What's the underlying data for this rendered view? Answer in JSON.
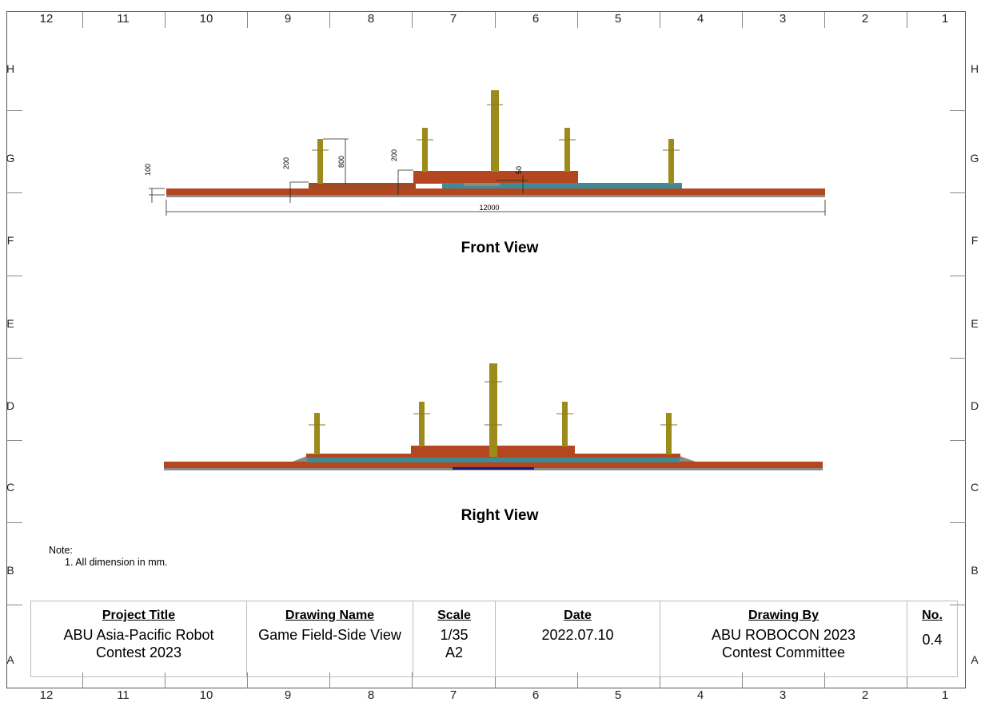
{
  "columns": [
    "12",
    "11",
    "10",
    "9",
    "8",
    "7",
    "6",
    "5",
    "4",
    "3",
    "2",
    "1"
  ],
  "rows": [
    "H",
    "G",
    "F",
    "E",
    "D",
    "C",
    "B",
    "A"
  ],
  "views": {
    "front_title": "Front View",
    "right_title": "Right View"
  },
  "dimensions": {
    "d100": "100",
    "d200a": "200",
    "d800": "800",
    "d200b": "200",
    "d50": "50",
    "d12000": "12000"
  },
  "note": {
    "label": "Note:",
    "line1": "1. All dimension in mm."
  },
  "title_block": {
    "project_title_label": "Project Title",
    "project_title_line1": "ABU Asia-Pacific Robot",
    "project_title_line2": "Contest 2023",
    "drawing_name_label": "Drawing Name",
    "drawing_name_value": "Game Field-Side View",
    "scale_label": "Scale",
    "scale_line1": "1/35",
    "scale_line2": "A2",
    "date_label": "Date",
    "date_value": "2022.07.10",
    "drawing_by_label": "Drawing By",
    "drawing_by_line1": "ABU ROBOCON 2023",
    "drawing_by_line2": "Contest Committee",
    "no_label": "No.",
    "no_value": "0.4"
  },
  "colors": {
    "floor": "#b4471f",
    "deck": "#a24a22",
    "teal": "#3b8c97",
    "pole": "#9c8a1b",
    "gray": "#8a8a8a",
    "navy": "#1a1a8a"
  }
}
